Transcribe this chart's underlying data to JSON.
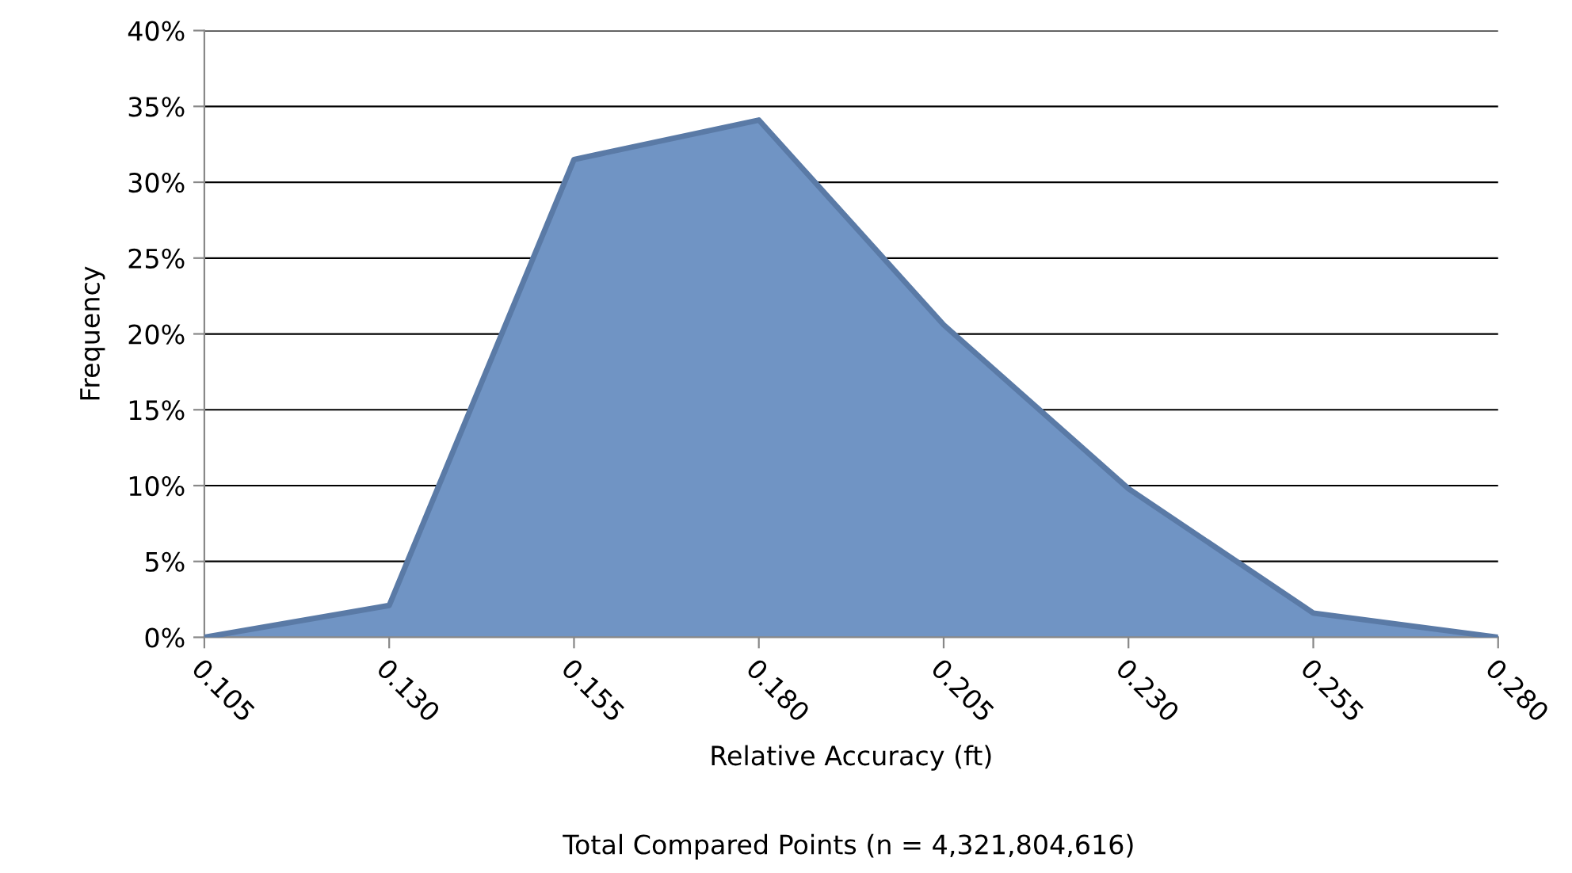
{
  "chart_data": {
    "type": "area",
    "xlabel": "Relative Accuracy (ft)",
    "ylabel": "Frequency",
    "categories": [
      "0.105",
      "0.130",
      "0.155",
      "0.180",
      "0.205",
      "0.230",
      "0.255",
      "0.280"
    ],
    "series": [
      {
        "color": "#7094c4",
        "values": [
          0,
          2.1,
          31.5,
          34.1,
          20.6,
          9.8,
          1.6,
          0
        ]
      }
    ],
    "ylim": [
      0,
      40
    ],
    "yticks": [
      {
        "value": 0,
        "label": "0%"
      },
      {
        "value": 5,
        "label": "5%"
      },
      {
        "value": 10,
        "label": "10%"
      },
      {
        "value": 15,
        "label": "15%"
      },
      {
        "value": 20,
        "label": "20%"
      },
      {
        "value": 25,
        "label": "25%"
      },
      {
        "value": 30,
        "label": "30%"
      },
      {
        "value": 35,
        "label": "35%"
      },
      {
        "value": 40,
        "label": "40%"
      }
    ],
    "grid": "y",
    "annotations": [
      "Total Compared Points (n = 4,321,804,616)"
    ]
  }
}
